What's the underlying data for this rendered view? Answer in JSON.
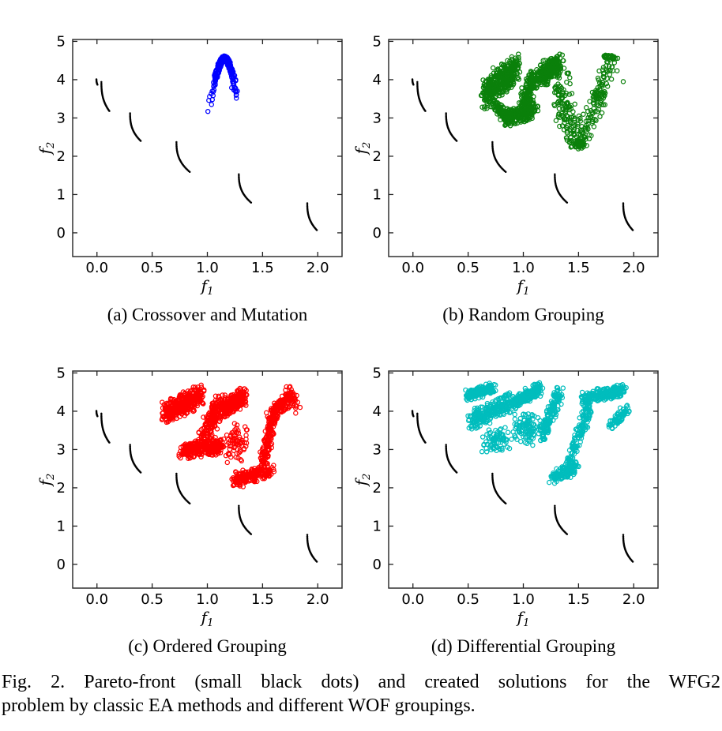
{
  "figure": {
    "caption_line1": "Fig. 2.  Pareto-front (small black dots) and created solutions for the WFG2",
    "caption_line2": "problem by classic EA methods and different WOF groupings."
  },
  "chart_data": {
    "type": "scatter",
    "title": "",
    "xlabel": "f1",
    "ylabel": "f2",
    "xlim": [
      -0.22,
      2.22
    ],
    "ylim": [
      -0.62,
      5.05
    ],
    "grid": false,
    "xticks": {
      "values": [
        0,
        0.5,
        1.0,
        1.5,
        2.0
      ],
      "labels": [
        "0.0",
        "0.5",
        "1.0",
        "1.5",
        "2.0"
      ]
    },
    "yticks": {
      "values": [
        0,
        1,
        2,
        3,
        4,
        5
      ],
      "labels": [
        "0",
        "1",
        "2",
        "3",
        "4",
        "5"
      ]
    },
    "pareto_front": {
      "name": "Pareto-front (small black dots)",
      "color": "#000000",
      "marker": "dot",
      "segments": [
        {
          "x0": -0.005,
          "y0": 4.03,
          "x1": 0.006,
          "y1": 3.86,
          "n": 7
        },
        {
          "x0": 0.04,
          "y0": 3.97,
          "x1": 0.115,
          "y1": 3.17,
          "n": 30
        },
        {
          "x0": 0.3,
          "y0": 3.15,
          "x1": 0.4,
          "y1": 2.39,
          "n": 30
        },
        {
          "x0": 0.72,
          "y0": 2.4,
          "x1": 0.845,
          "y1": 1.58,
          "n": 30
        },
        {
          "x0": 1.285,
          "y0": 1.56,
          "x1": 1.4,
          "y1": 0.78,
          "n": 30
        },
        {
          "x0": 1.905,
          "y0": 0.8,
          "x1": 1.995,
          "y1": 0.06,
          "n": 28
        }
      ]
    },
    "subplots": [
      {
        "id": "a",
        "label": "(a) Crossover and Mutation",
        "series_name": "created solutions",
        "color": "#0000ff",
        "marker": "open-circle",
        "seed": 11,
        "clusters": [
          {
            "type": "parabola",
            "apex": [
              1.155,
              4.62
            ],
            "k": 59,
            "xhw": 0.125,
            "drop": 0.42,
            "n": 300
          },
          {
            "type": "points",
            "pts": [
              [
                1.005,
                3.17
              ],
              [
                1.013,
                3.46
              ],
              [
                1.02,
                3.56
              ],
              [
                1.035,
                3.63
              ],
              [
                1.24,
                3.73
              ],
              [
                1.26,
                3.7
              ],
              [
                1.22,
                3.79
              ],
              [
                1.255,
                3.78
              ]
            ]
          }
        ]
      },
      {
        "id": "b",
        "label": "(b) Random Grouping",
        "series_name": "created solutions",
        "color": "#0b800b",
        "marker": "open-circle",
        "seed": 22,
        "clusters": [
          {
            "type": "band",
            "x0": 0.65,
            "y0": 3.62,
            "x1": 0.94,
            "y1": 4.32,
            "w": 0.85,
            "wx": 0.05,
            "n": 420
          },
          {
            "type": "band",
            "x0": 0.7,
            "y0": 3.45,
            "x1": 0.87,
            "y1": 3.05,
            "w": 0.3,
            "wx": 0.05,
            "n": 90
          },
          {
            "type": "band",
            "x0": 0.83,
            "y0": 2.98,
            "x1": 1.1,
            "y1": 3.2,
            "w": 0.45,
            "wx": 0.05,
            "n": 260
          },
          {
            "type": "band",
            "x0": 1.0,
            "y0": 3.35,
            "x1": 1.1,
            "y1": 4.1,
            "w": 0.5,
            "wx": 0.07,
            "n": 150
          },
          {
            "type": "band",
            "x0": 1.14,
            "y0": 4.05,
            "x1": 1.32,
            "y1": 4.45,
            "w": 0.55,
            "wx": 0.05,
            "n": 280
          },
          {
            "type": "arc",
            "p0": [
              1.3,
              4.4
            ],
            "c": [
              1.36,
              3.2
            ],
            "p1": [
              1.48,
              2.32
            ],
            "w": 0.12,
            "n": 150
          },
          {
            "type": "blob",
            "cx": 1.5,
            "cy": 2.32,
            "rx": 0.08,
            "ry": 0.14,
            "n": 60
          },
          {
            "type": "arc",
            "p0": [
              1.52,
              2.45
            ],
            "c": [
              1.68,
              3.3
            ],
            "p1": [
              1.79,
              4.55
            ],
            "w": 0.09,
            "n": 130
          },
          {
            "type": "band",
            "x0": 1.74,
            "y0": 4.63,
            "x1": 1.84,
            "y1": 4.55,
            "w": 0.12,
            "wx": 0.02,
            "n": 30
          },
          {
            "type": "points",
            "pts": [
              [
                1.905,
                3.95
              ]
            ]
          }
        ]
      },
      {
        "id": "c",
        "label": "(c) Ordered Grouping",
        "series_name": "created solutions",
        "color": "#ff0000",
        "marker": "open-circle",
        "seed": 33,
        "clusters": [
          {
            "type": "band",
            "x0": 0.62,
            "y0": 3.95,
            "x1": 0.95,
            "y1": 4.45,
            "w": 0.6,
            "wx": 0.05,
            "n": 400
          },
          {
            "type": "band",
            "x0": 0.78,
            "y0": 2.95,
            "x1": 1.13,
            "y1": 3.1,
            "w": 0.45,
            "wx": 0.05,
            "n": 300
          },
          {
            "type": "band",
            "x0": 0.95,
            "y0": 3.3,
            "x1": 1.12,
            "y1": 4.2,
            "w": 0.6,
            "wx": 0.06,
            "n": 200
          },
          {
            "type": "band",
            "x0": 1.14,
            "y0": 4.05,
            "x1": 1.33,
            "y1": 4.4,
            "w": 0.5,
            "wx": 0.05,
            "n": 260
          },
          {
            "type": "blob",
            "cx": 1.27,
            "cy": 3.2,
            "rx": 0.13,
            "ry": 0.6,
            "n": 70
          },
          {
            "type": "band",
            "x0": 1.25,
            "y0": 2.2,
            "x1": 1.57,
            "y1": 2.45,
            "w": 0.4,
            "wx": 0.05,
            "n": 220
          },
          {
            "type": "band",
            "x0": 1.5,
            "y0": 2.6,
            "x1": 1.6,
            "y1": 3.9,
            "w": 0.3,
            "wx": 0.05,
            "n": 150
          },
          {
            "type": "band",
            "x0": 1.58,
            "y0": 3.9,
            "x1": 1.77,
            "y1": 4.45,
            "w": 0.45,
            "wx": 0.05,
            "n": 170
          },
          {
            "type": "blob",
            "cx": 1.8,
            "cy": 4.2,
            "rx": 0.06,
            "ry": 0.2,
            "n": 10
          },
          {
            "type": "points",
            "pts": [
              [
                1.8,
                3.95
              ],
              [
                1.84,
                4.1
              ]
            ]
          }
        ]
      },
      {
        "id": "d",
        "label": "(d) Differential Grouping",
        "series_name": "created solutions",
        "color": "#00bdbd",
        "marker": "open-circle",
        "seed": 44,
        "clusters": [
          {
            "type": "band",
            "x0": 0.49,
            "y0": 4.42,
            "x1": 0.72,
            "y1": 4.6,
            "w": 0.3,
            "wx": 0.04,
            "n": 200
          },
          {
            "type": "band",
            "x0": 0.53,
            "y0": 3.75,
            "x1": 0.88,
            "y1": 4.25,
            "w": 0.55,
            "wx": 0.05,
            "n": 260
          },
          {
            "type": "blob",
            "cx": 0.78,
            "cy": 3.25,
            "rx": 0.16,
            "ry": 0.35,
            "n": 80
          },
          {
            "type": "band",
            "x0": 0.9,
            "y0": 4.2,
            "x1": 1.16,
            "y1": 4.6,
            "w": 0.35,
            "wx": 0.04,
            "n": 220
          },
          {
            "type": "blob",
            "cx": 1.05,
            "cy": 3.55,
            "rx": 0.16,
            "ry": 0.5,
            "n": 110
          },
          {
            "type": "band",
            "x0": 1.18,
            "y0": 3.4,
            "x1": 1.32,
            "y1": 4.5,
            "w": 0.4,
            "wx": 0.05,
            "n": 150
          },
          {
            "type": "band",
            "x0": 1.27,
            "y0": 2.25,
            "x1": 1.48,
            "y1": 2.55,
            "w": 0.4,
            "wx": 0.05,
            "n": 130
          },
          {
            "type": "band",
            "x0": 1.42,
            "y0": 2.6,
            "x1": 1.6,
            "y1": 4.2,
            "w": 0.3,
            "wx": 0.05,
            "n": 150
          },
          {
            "type": "band",
            "x0": 1.55,
            "y0": 4.35,
            "x1": 1.9,
            "y1": 4.55,
            "w": 0.35,
            "wx": 0.04,
            "n": 260
          },
          {
            "type": "band",
            "x0": 1.78,
            "y0": 3.6,
            "x1": 1.94,
            "y1": 4.05,
            "w": 0.3,
            "wx": 0.04,
            "n": 80
          }
        ]
      }
    ]
  }
}
